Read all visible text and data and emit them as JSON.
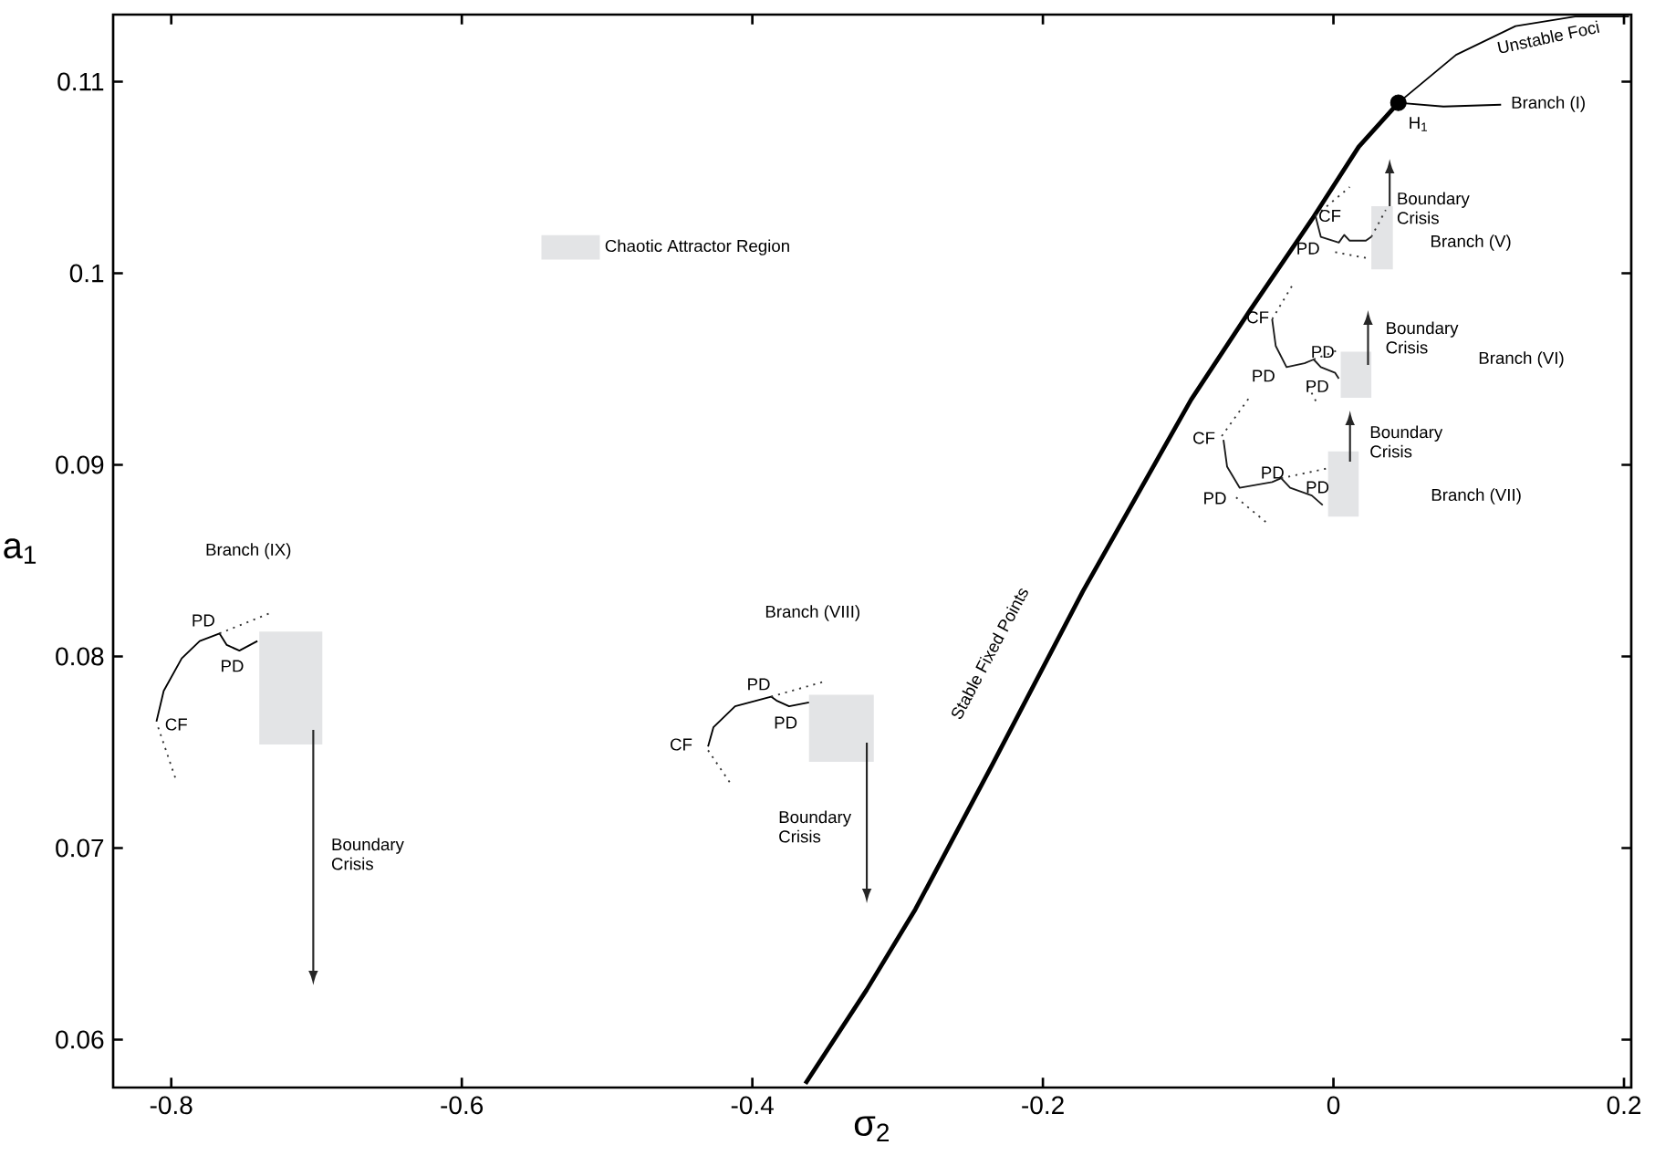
{
  "chart_data": {
    "type": "line",
    "xlabel": "σ$_{2}$",
    "ylabel": "a$_{1}$",
    "xlim": [
      -0.84,
      0.205
    ],
    "ylim": [
      0.0575,
      0.1135
    ],
    "xticks": [
      -0.8,
      -0.6,
      -0.4,
      -0.2,
      0,
      0.2
    ],
    "yticks": [
      0.06,
      0.07,
      0.08,
      0.09,
      0.1,
      0.11
    ],
    "grid": false,
    "legend": "top left",
    "series": [
      {
        "color": "#000000",
        "line_style": "solid",
        "x": [
          -0.3635,
          -0.3213,
          -0.2878,
          -0.2345,
          -0.1725,
          -0.098,
          -0.0571,
          -0.0149,
          0.0174,
          0.0447
        ],
        "values": [
          0.0577,
          0.0626,
          0.0668,
          0.0744,
          0.0834,
          0.0934,
          0.0981,
          0.1028,
          0.1066,
          0.1089
        ]
      },
      {
        "color": "#000000",
        "line_style": "solid",
        "x": [
          0.0447,
          0.0844,
          0.1253,
          0.1663,
          0.2035
        ],
        "values": [
          0.1089,
          0.1114,
          0.1129,
          0.1134,
          0.1134
        ]
      },
      {
        "color": "#000000",
        "line_style": "solid",
        "x": [
          0.0447,
          0.0757,
          0.1154
        ],
        "values": [
          0.1089,
          0.1087,
          0.1088
        ]
      },
      {
        "type": "scatter",
        "color": "#000000",
        "x": [
          0.0447
        ],
        "values": [
          0.1089
        ]
      },
      {
        "color": "#1a1a1a",
        "line_style": "solid",
        "x": [
          -0.0124,
          -0.0087,
          0.0037,
          0.0074,
          0.0112,
          0.0223,
          0.0261
        ],
        "values": [
          0.103,
          0.1019,
          0.1016,
          0.102,
          0.1017,
          0.1017,
          0.1019
        ]
      },
      {
        "color": "#333333",
        "line_style": "dotted",
        "x": [
          -0.0124,
          0.0112
        ],
        "values": [
          0.103,
          0.1045
        ]
      },
      {
        "color": "#333333",
        "line_style": "dotted",
        "x": [
          0.0261,
          0.036
        ],
        "values": [
          0.1019,
          0.1033
        ]
      },
      {
        "color": "#333333",
        "line_style": "dotted",
        "x": [
          0.0012,
          0.0223
        ],
        "values": [
          0.1011,
          0.1008
        ]
      },
      {
        "color": "#1a1a1a",
        "line_style": "solid",
        "x": [
          -0.0422,
          -0.0397,
          -0.0323,
          -0.0199,
          -0.0136,
          -0.0087,
          0.0012,
          0.0037
        ],
        "values": [
          0.0976,
          0.0962,
          0.0951,
          0.0953,
          0.0955,
          0.0951,
          0.0948,
          0.0945
        ]
      },
      {
        "color": "#333333",
        "line_style": "dotted",
        "x": [
          -0.0422,
          -0.0273
        ],
        "values": [
          0.0976,
          0.0995
        ]
      },
      {
        "color": "#333333",
        "line_style": "dotted",
        "x": [
          -0.0136,
          0.0037
        ],
        "values": [
          0.0955,
          0.096
        ]
      },
      {
        "color": "#333333",
        "line_style": "dotted",
        "x": [
          -0.0174,
          -0.0112
        ],
        "values": [
          0.0941,
          0.0932
        ]
      },
      {
        "color": "#1a1a1a",
        "line_style": "solid",
        "x": [
          -0.0757,
          -0.0732,
          -0.0645,
          -0.0422,
          -0.036,
          -0.0298,
          -0.0149,
          -0.0074
        ],
        "values": [
          0.0913,
          0.0899,
          0.0888,
          0.0891,
          0.0893,
          0.0888,
          0.0884,
          0.0879
        ]
      },
      {
        "color": "#333333",
        "line_style": "dotted",
        "x": [
          -0.0769,
          -0.0571
        ],
        "values": [
          0.0915,
          0.0936
        ]
      },
      {
        "color": "#333333",
        "line_style": "dotted",
        "x": [
          -0.036,
          -0.005
        ],
        "values": [
          0.0893,
          0.0898
        ]
      },
      {
        "color": "#333333",
        "line_style": "dotted",
        "x": [
          -0.067,
          -0.0447
        ],
        "values": [
          0.0883,
          0.0869
        ]
      },
      {
        "color": "#000000",
        "line_style": "solid",
        "x": [
          -0.8102,
          -0.8052,
          -0.7928,
          -0.7804,
          -0.7668,
          -0.7618,
          -0.7531,
          -0.7407
        ],
        "values": [
          0.0766,
          0.0782,
          0.0799,
          0.0808,
          0.0812,
          0.0806,
          0.0803,
          0.0808
        ]
      },
      {
        "color": "#333333",
        "line_style": "dotted",
        "x": [
          -0.7668,
          -0.7308
        ],
        "values": [
          0.0812,
          0.0823
        ]
      },
      {
        "color": "#333333",
        "line_style": "dotted",
        "x": [
          -0.809,
          -0.7965
        ],
        "values": [
          0.0763,
          0.0735
        ]
      },
      {
        "color": "#000000",
        "line_style": "solid",
        "x": [
          -0.4305,
          -0.4268,
          -0.4119,
          -0.3871,
          -0.3834,
          -0.3747,
          -0.361
        ],
        "values": [
          0.0753,
          0.0763,
          0.0774,
          0.0779,
          0.0777,
          0.0774,
          0.0776
        ]
      },
      {
        "color": "#333333",
        "line_style": "dotted",
        "x": [
          -0.3871,
          -0.3499
        ],
        "values": [
          0.0779,
          0.0787
        ]
      },
      {
        "color": "#333333",
        "line_style": "dotted",
        "x": [
          -0.4305,
          -0.4144
        ],
        "values": [
          0.0751,
          0.0733
        ]
      },
      {
        "type": "bar",
        "name": "Chaotic Attractor Region",
        "color": "#e3e4e6",
        "x": [
          -0.7177,
          -0.3387,
          0.00685,
          0.01555,
          0.0335
        ],
        "base": [
          0.0754,
          0.0745,
          0.0873,
          0.0935,
          0.1002
        ],
        "values": [
          0.0059,
          0.0035,
          0.0034,
          0.0024,
          0.0033
        ]
      }
    ],
    "annotations": [
      "Stable Fixed Points",
      "Unstable Foci",
      "H$_{1}$",
      "Branch (I)",
      {
        "text": "CF",
        "x": -0.0025,
        "y": 0.103
      },
      "PD",
      "Boundary Crisis",
      "Branch (V)",
      {
        "text": "CF",
        "x": -0.0521,
        "y": 0.0977
      },
      {
        "text": "PD",
        "x": -0.0074,
        "y": 0.0959
      },
      {
        "text": "PD",
        "x": -0.0112,
        "y": 0.0941
      },
      "PD",
      "Boundary Crisis",
      "Branch (VI)",
      "CF",
      "PD",
      "PD",
      "PD",
      "Boundary Crisis",
      "Branch (VII)",
      "Branch (VIII)",
      "CF",
      "PD",
      "PD",
      "Boundary Crisis",
      "Branch (IX)",
      "PD",
      "PD",
      "CF",
      "Boundary Crisis"
    ]
  }
}
